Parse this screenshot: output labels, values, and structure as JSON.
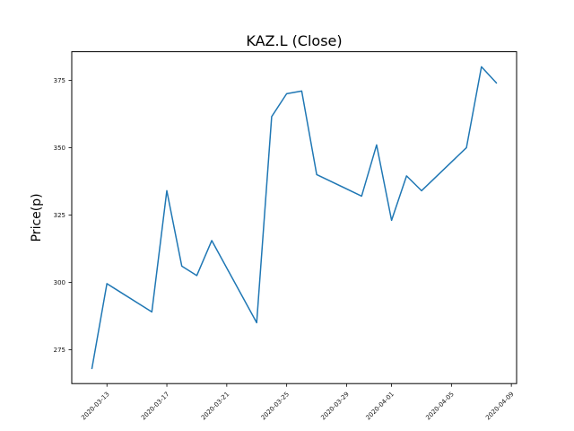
{
  "chart_data": {
    "type": "line",
    "title": "KAZ.L (Close)",
    "xlabel": "",
    "ylabel": "Price(p)",
    "grid": false,
    "legend": "none",
    "background_color": "#ffffff",
    "spine_color": "#000000",
    "x_origin": "2020-03-12",
    "xlim_days": [
      -1.35,
      28.35
    ],
    "ylim": [
      262.4,
      385.6
    ],
    "x_ticks": [
      "2020-03-13",
      "2020-03-17",
      "2020-03-21",
      "2020-03-25",
      "2020-03-29",
      "2020-04-01",
      "2020-04-05",
      "2020-04-09"
    ],
    "y_ticks": [
      275,
      300,
      325,
      350,
      375
    ],
    "series": [
      {
        "name": "Close",
        "color": "#1f77b4",
        "x": [
          "2020-03-12",
          "2020-03-13",
          "2020-03-16",
          "2020-03-17",
          "2020-03-18",
          "2020-03-19",
          "2020-03-20",
          "2020-03-23",
          "2020-03-24",
          "2020-03-25",
          "2020-03-26",
          "2020-03-27",
          "2020-03-30",
          "2020-03-31",
          "2020-04-01",
          "2020-04-02",
          "2020-04-03",
          "2020-04-06",
          "2020-04-07",
          "2020-04-08"
        ],
        "y": [
          268,
          299.5,
          289,
          334,
          306,
          302.5,
          315.5,
          285,
          361.5,
          370,
          371,
          340,
          332,
          351,
          323,
          339.5,
          334,
          350,
          380,
          374
        ]
      }
    ]
  }
}
